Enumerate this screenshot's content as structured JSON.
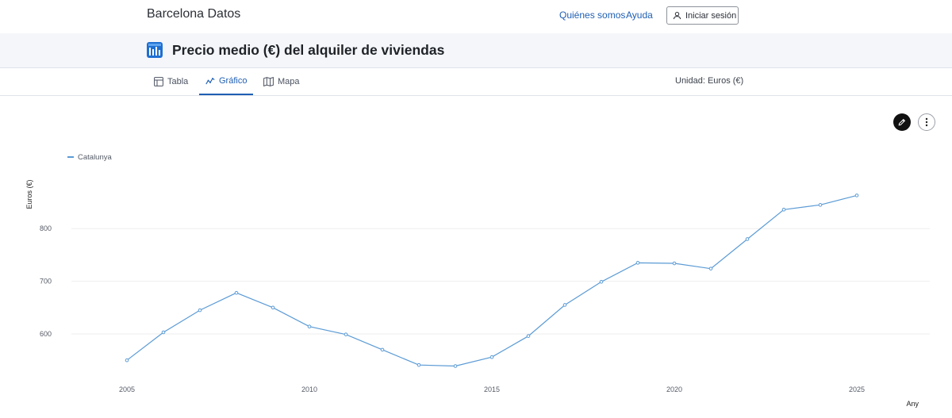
{
  "header": {
    "brand": "Barcelona Datos",
    "nav": {
      "about": "Quiénes somos",
      "help": "Ayuda"
    },
    "login_label": "Iniciar sesión"
  },
  "page": {
    "title": "Precio medio (€) del alquiler de viviendas",
    "unit": "Unidad: Euros (€)"
  },
  "tabs": [
    {
      "label": "Tabla",
      "icon": "table-icon",
      "active": false
    },
    {
      "label": "Gráfico",
      "icon": "line-chart-icon",
      "active": true
    },
    {
      "label": "Mapa",
      "icon": "map-icon",
      "active": false
    }
  ],
  "toolbar": {
    "edit_icon": "pencil-icon",
    "more_icon": "more-vertical-icon"
  },
  "colors": {
    "accent": "#1f5fb4",
    "series": "#5b9bd5"
  },
  "chart_data": {
    "type": "line",
    "title": "",
    "xlabel": "Any",
    "ylabel": "Euros (€)",
    "x": [
      2005,
      2006,
      2007,
      2008,
      2009,
      2010,
      2011,
      2012,
      2013,
      2014,
      2015,
      2016,
      2017,
      2018,
      2019,
      2020,
      2021,
      2022,
      2023,
      2024,
      2025
    ],
    "series": [
      {
        "name": "Catalunya",
        "values": [
          550,
          603,
          645,
          678,
          650,
          614,
          599,
          570,
          541,
          539,
          556,
          596,
          655,
          699,
          735,
          734,
          724,
          780,
          836,
          845,
          863
        ]
      }
    ],
    "xticks": [
      "2005",
      "2010",
      "2015",
      "2020",
      "2025"
    ],
    "yticks": [
      "600",
      "700",
      "800"
    ],
    "xlim": [
      2005,
      2025
    ],
    "ylim": [
      520,
      880
    ],
    "grid": true,
    "legend_position": "top-left"
  }
}
